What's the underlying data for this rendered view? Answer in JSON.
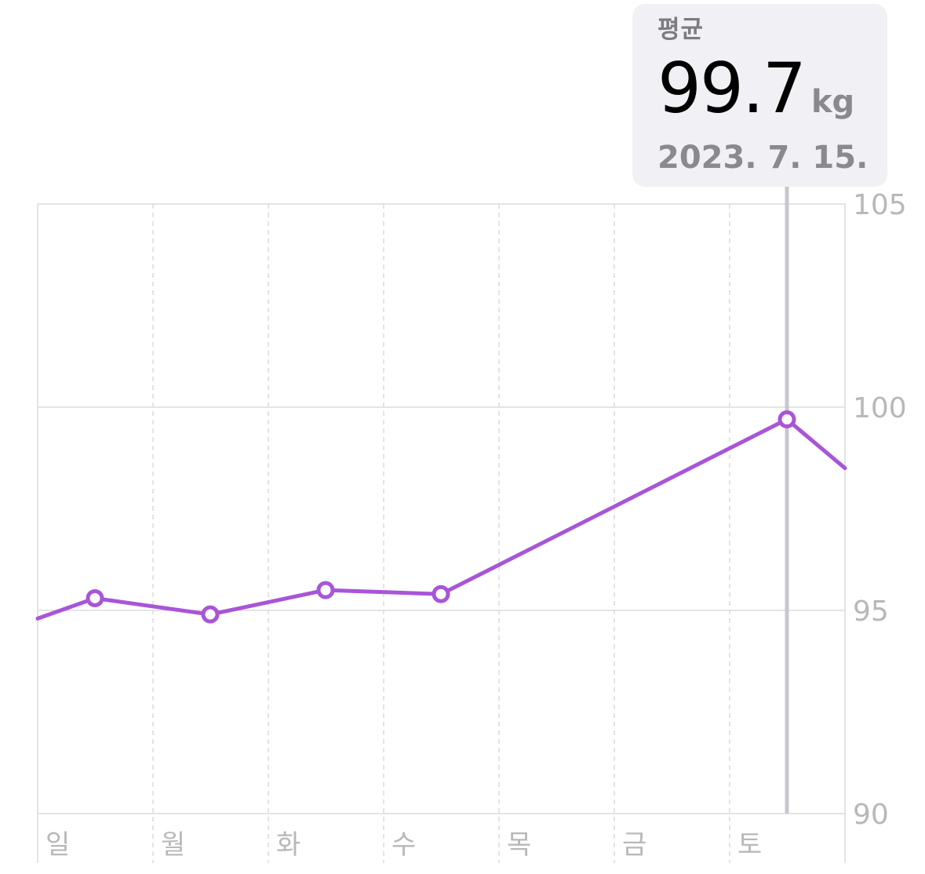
{
  "tooltip": {
    "label": "평균",
    "value": "99.7",
    "unit": "kg",
    "date": "2023. 7. 15."
  },
  "colors": {
    "series": "#a855d8",
    "grid": "#dcdcdc",
    "axis_text": "#b8b8b8",
    "cursor": "#c7c7cc",
    "tooltip_bg": "#f1f1f5"
  },
  "chart_data": {
    "type": "line",
    "title": "",
    "xlabel": "",
    "ylabel": "",
    "categories": [
      "일",
      "월",
      "화",
      "수",
      "목",
      "금",
      "토"
    ],
    "ylim": [
      90,
      105
    ],
    "yticks": [
      105,
      100,
      95,
      90
    ],
    "grid": true,
    "series": [
      {
        "points": [
          {
            "x": "토",
            "y": 94.8,
            "partial": "left"
          },
          {
            "x": "일",
            "y": 95.3
          },
          {
            "x": "월",
            "y": 94.9
          },
          {
            "x": "화",
            "y": 95.5
          },
          {
            "x": "수",
            "y": 95.4
          },
          {
            "x": "토",
            "y": 99.7
          },
          {
            "x": "일",
            "y": 98.5,
            "partial": "right"
          }
        ]
      }
    ],
    "selected": {
      "x": "토",
      "y": 99.7
    }
  }
}
